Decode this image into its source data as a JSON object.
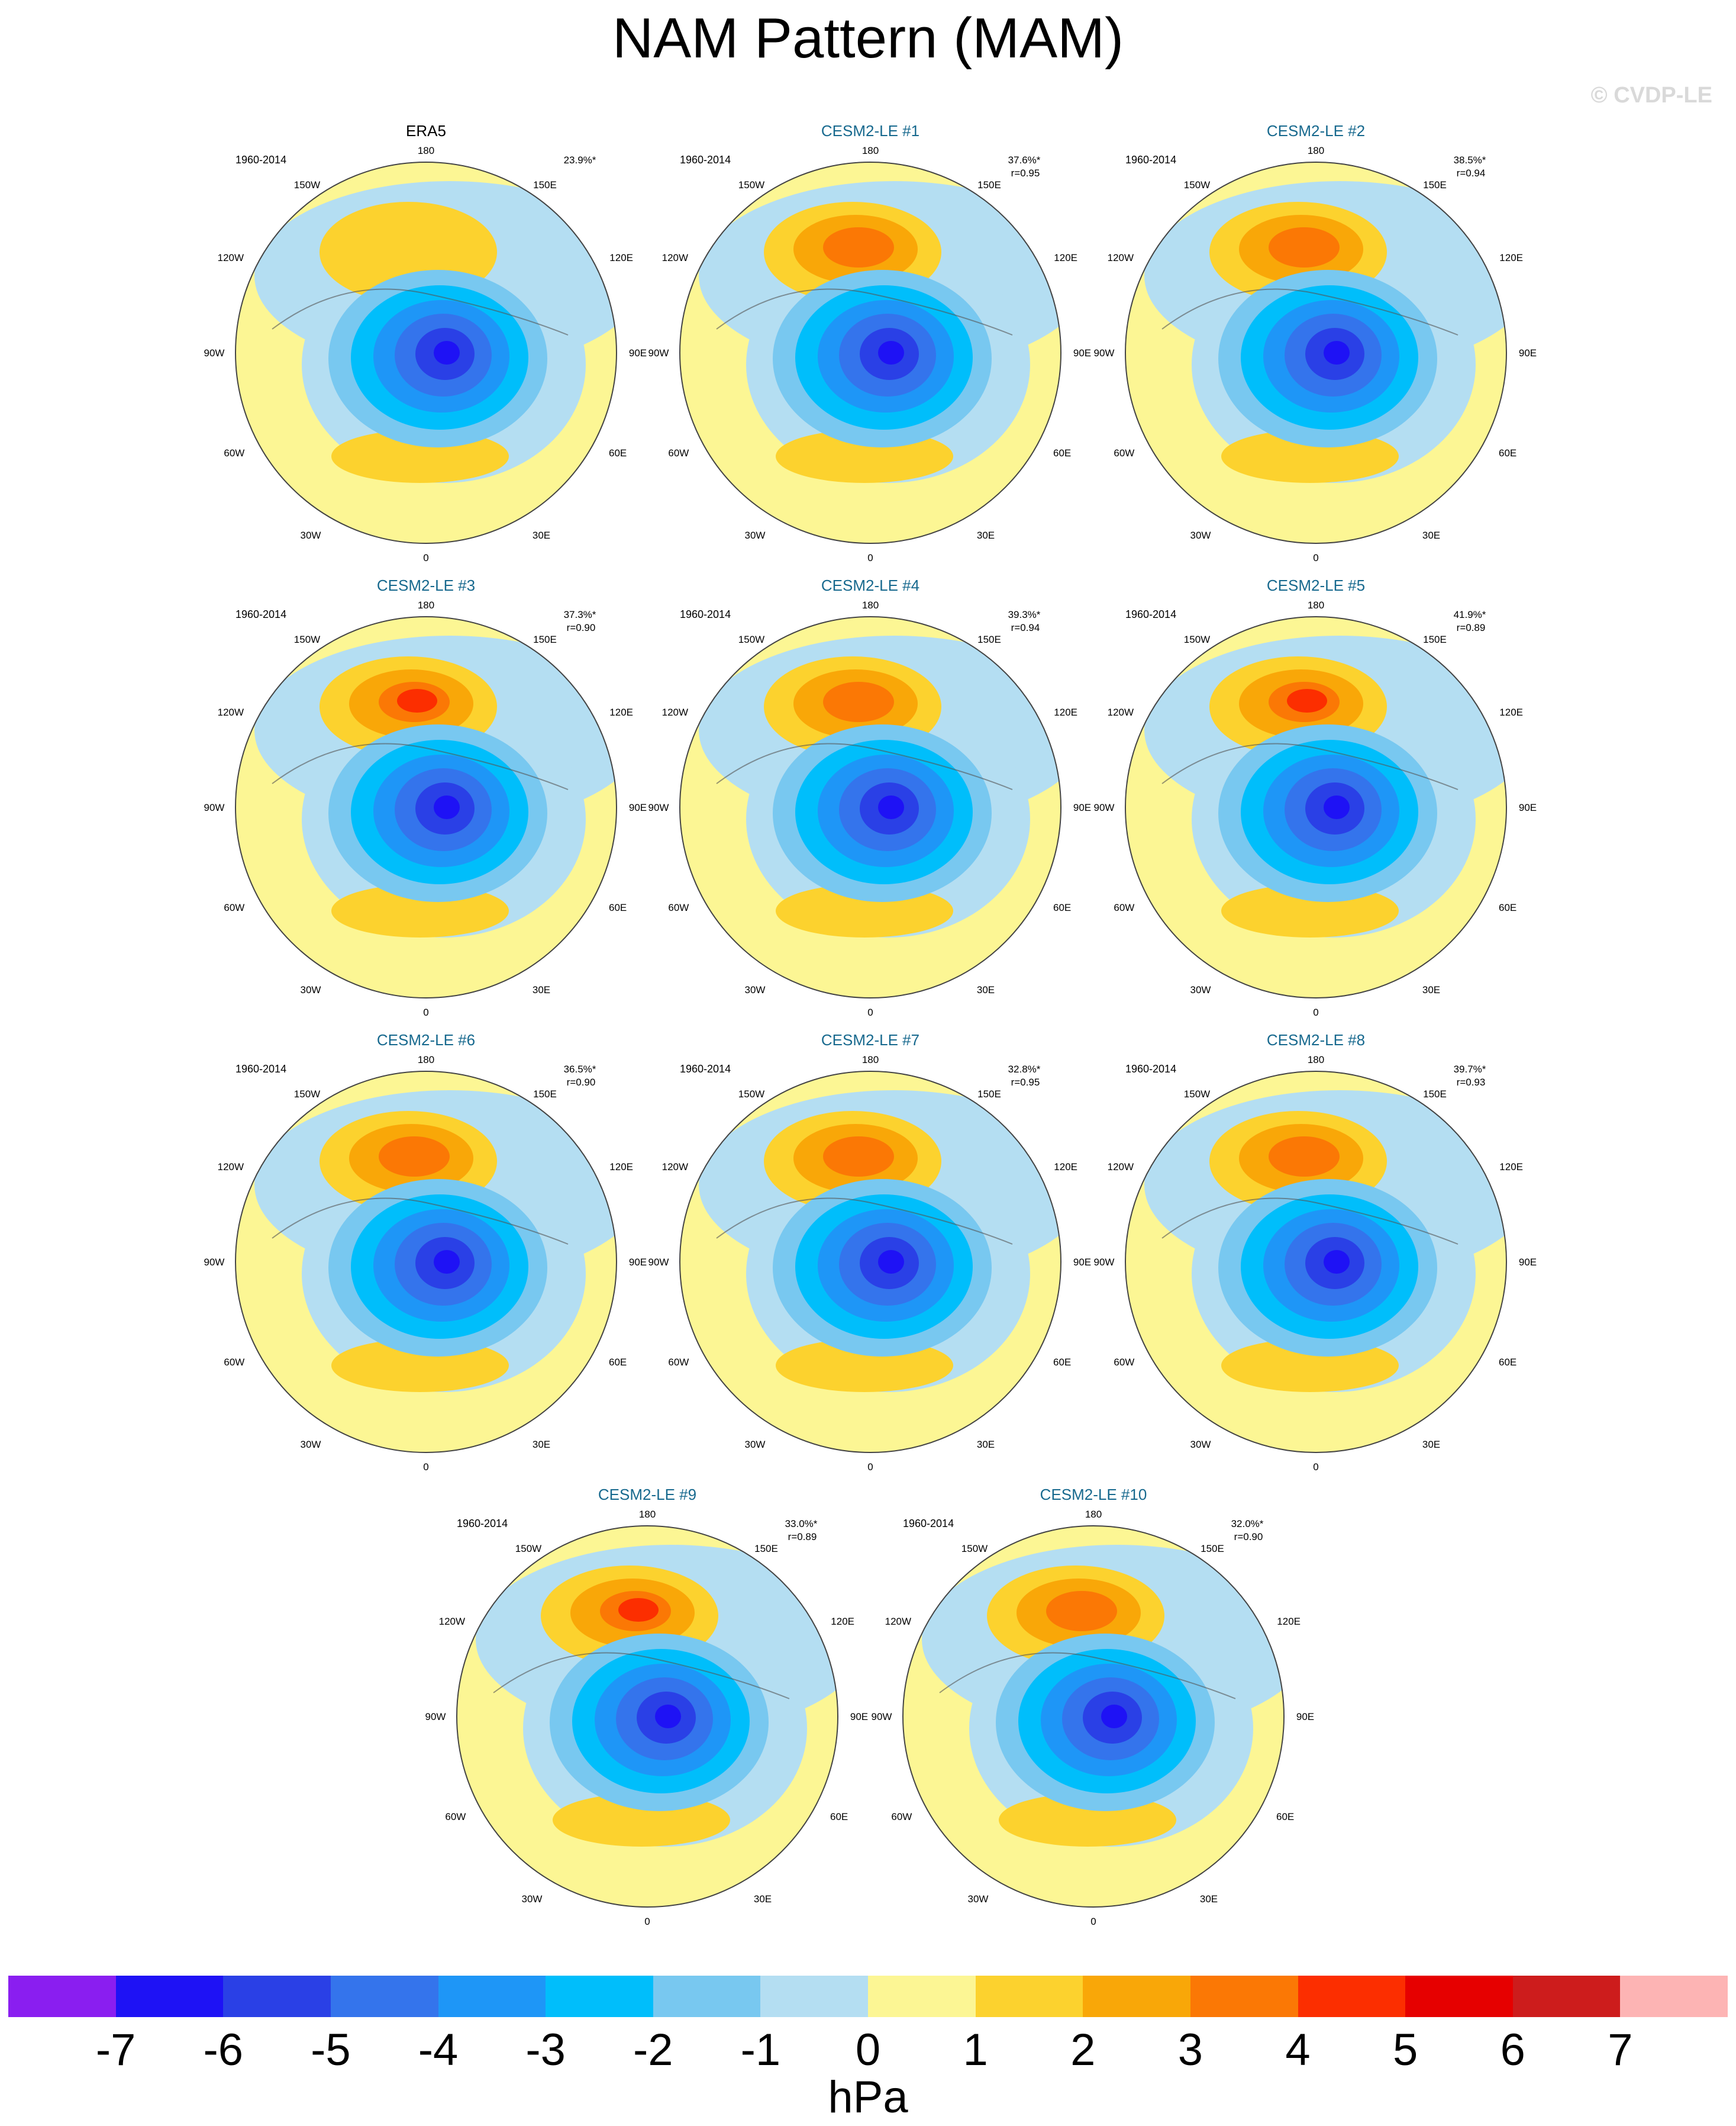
{
  "title": "NAM Pattern (MAM)",
  "watermark": "© CVDP-LE",
  "period": "1960-2014",
  "lon_labels": {
    "top": "180",
    "tl": "150W",
    "tr": "150E",
    "ul": "120W",
    "ur": "120E",
    "l": "90W",
    "r": "90E",
    "ll": "60W",
    "lr": "60E",
    "bl": "30W",
    "br": "30E",
    "bottom": "0"
  },
  "panels": [
    {
      "name": "ERA5",
      "obs": true,
      "pct": "23.9%*",
      "r": ""
    },
    {
      "name": "CESM2-LE #1",
      "pct": "37.6%*",
      "r": "r=0.95"
    },
    {
      "name": "CESM2-LE #2",
      "pct": "38.5%*",
      "r": "r=0.94"
    },
    {
      "name": "CESM2-LE #3",
      "pct": "37.3%*",
      "r": "r=0.90"
    },
    {
      "name": "CESM2-LE #4",
      "pct": "39.3%*",
      "r": "r=0.94"
    },
    {
      "name": "CESM2-LE #5",
      "pct": "41.9%*",
      "r": "r=0.89"
    },
    {
      "name": "CESM2-LE #6",
      "pct": "36.5%*",
      "r": "r=0.90"
    },
    {
      "name": "CESM2-LE #7",
      "pct": "32.8%*",
      "r": "r=0.95"
    },
    {
      "name": "CESM2-LE #8",
      "pct": "39.7%*",
      "r": "r=0.93"
    },
    {
      "name": "CESM2-LE #9",
      "pct": "33.0%*",
      "r": "r=0.89"
    },
    {
      "name": "CESM2-LE #10",
      "pct": "32.0%*",
      "r": "r=0.90"
    }
  ],
  "colorbar": {
    "colors": [
      "#8a1ef0",
      "#1e12f5",
      "#2a40e6",
      "#3474ec",
      "#1e96f7",
      "#00befb",
      "#78c8f0",
      "#b4def2",
      "#fcf694",
      "#fcd22e",
      "#f9a708",
      "#fb7805",
      "#fc2e00",
      "#e60000",
      "#cd1c1c",
      "#fdb4b4"
    ],
    "ticks": [
      "-7",
      "-6",
      "-5",
      "-4",
      "-3",
      "-2",
      "-1",
      "0",
      "1",
      "2",
      "3",
      "4",
      "5",
      "6",
      "7"
    ],
    "unit": "hPa"
  }
}
